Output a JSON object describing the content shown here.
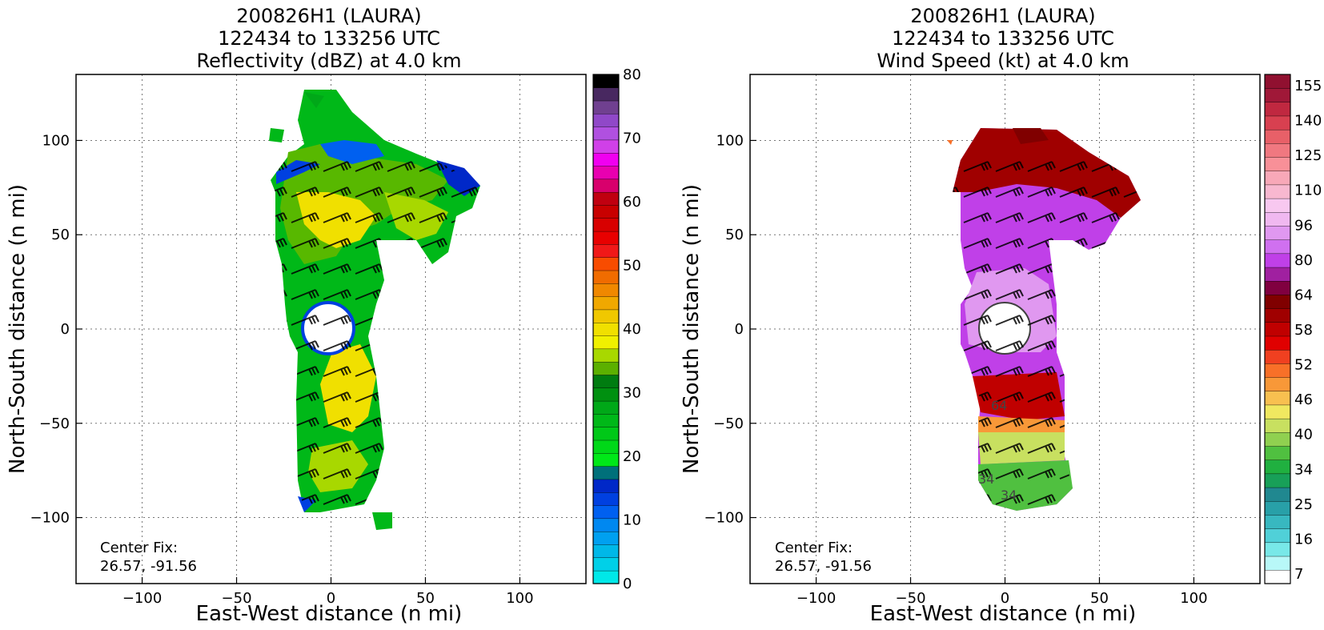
{
  "chart_data": [
    {
      "type": "heatmap",
      "variable": "reflectivity",
      "title_lines": [
        "200826H1 (LAURA)",
        "122434 to 133256 UTC",
        "Reflectivity (dBZ) at 4.0 km"
      ],
      "xlabel": "East-West distance (n mi)",
      "ylabel": "North-South distance (n mi)",
      "xlim": [
        -135,
        135
      ],
      "ylim": [
        -135,
        135
      ],
      "xticks": [
        -100,
        -50,
        0,
        50,
        100
      ],
      "yticks": [
        -100,
        -50,
        0,
        50,
        100
      ],
      "grid": true,
      "center_fix_label": "Center Fix:",
      "center_fix_value": "26.57, -91.56",
      "colorbar": {
        "min": 0,
        "max": 80,
        "ticks": [
          0,
          10,
          20,
          30,
          40,
          50,
          60,
          70,
          80
        ],
        "colors": [
          "#00e8e8",
          "#00d0e8",
          "#00b8e8",
          "#00a0f0",
          "#0088f0",
          "#0060f0",
          "#0040e0",
          "#0028c8",
          "#00707a",
          "#00e818",
          "#00d818",
          "#00c818",
          "#00b818",
          "#00a818",
          "#009010",
          "#007c10",
          "#5cb000",
          "#a8d800",
          "#f0f000",
          "#f0e000",
          "#f0c800",
          "#f0a800",
          "#f08800",
          "#f06c00",
          "#f84c00",
          "#f01818",
          "#e80000",
          "#d80000",
          "#c80000",
          "#c00010",
          "#d8006c",
          "#e800b0",
          "#f000f0",
          "#d040e8",
          "#b050e0",
          "#9048c8",
          "#704090",
          "#482860",
          "#000000"
        ]
      }
    },
    {
      "type": "heatmap",
      "variable": "wind_speed",
      "title_lines": [
        "200826H1 (LAURA)",
        "122434 to 133256 UTC",
        "Wind Speed (kt) at 4.0 km"
      ],
      "xlabel": "East-West distance (n mi)",
      "ylabel": "North-South distance (n mi)",
      "xlim": [
        -135,
        135
      ],
      "ylim": [
        -135,
        135
      ],
      "xticks": [
        -100,
        -50,
        0,
        50,
        100
      ],
      "yticks": [
        -100,
        -50,
        0,
        50,
        100
      ],
      "grid": true,
      "center_fix_label": "Center Fix:",
      "center_fix_value": "26.57, -91.56",
      "contour_labels": [
        "64",
        "34",
        "34"
      ],
      "colorbar": {
        "tick_labels": [
          "7",
          "16",
          "25",
          "34",
          "40",
          "46",
          "52",
          "58",
          "64",
          "80",
          "96",
          "110",
          "125",
          "140",
          "155"
        ],
        "colors": [
          "#ffffff",
          "#b8f8f8",
          "#78e8e8",
          "#50d0d8",
          "#38b8c0",
          "#28a0a8",
          "#208890",
          "#18a058",
          "#20b040",
          "#50c040",
          "#90d050",
          "#c8e060",
          "#f0e860",
          "#f8c050",
          "#f89838",
          "#f87028",
          "#f04020",
          "#e00000",
          "#c00000",
          "#a00000",
          "#800000",
          "#800040",
          "#a020a0",
          "#c040e8",
          "#d070f0",
          "#e098f0",
          "#f0b8f0",
          "#f8c8f0",
          "#f8b8d0",
          "#f8a8b8",
          "#f89098",
          "#f07880",
          "#e86068",
          "#d84050",
          "#c02840",
          "#a01838",
          "#901030"
        ]
      }
    }
  ]
}
